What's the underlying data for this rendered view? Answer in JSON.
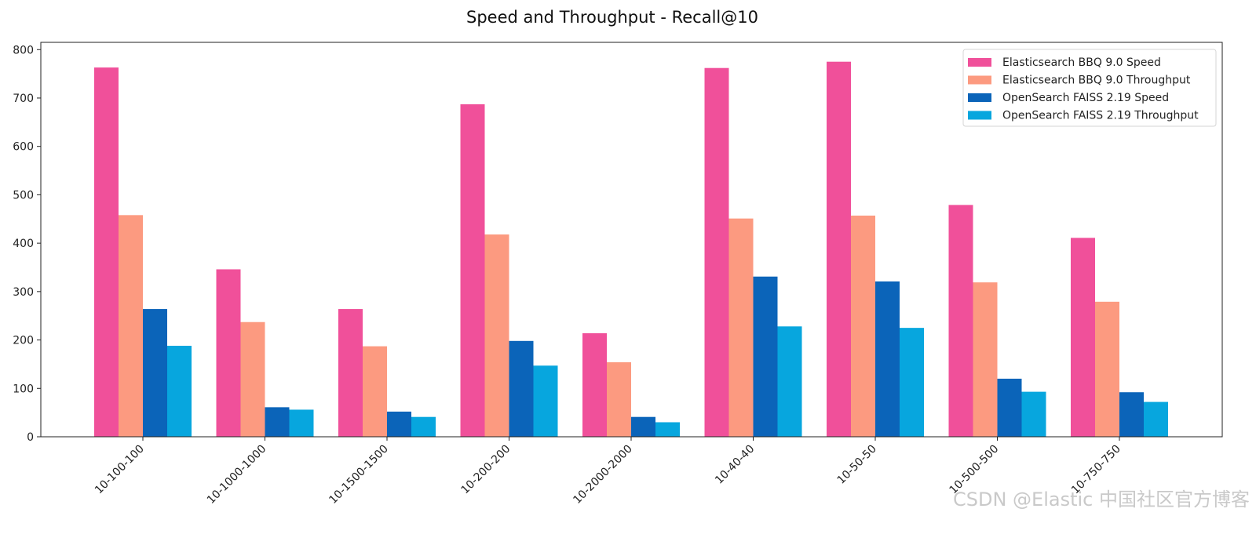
{
  "chart_data": {
    "type": "bar",
    "title": "Speed and Throughput - Recall@10",
    "xlabel": "",
    "ylabel": "",
    "ylim": [
      0,
      815
    ],
    "yticks": [
      0,
      100,
      200,
      300,
      400,
      500,
      600,
      700,
      800
    ],
    "categories": [
      "10-100-100",
      "10-1000-1000",
      "10-1500-1500",
      "10-200-200",
      "10-2000-2000",
      "10-40-40",
      "10-50-50",
      "10-500-500",
      "10-750-750"
    ],
    "series": [
      {
        "name": "Elasticsearch BBQ 9.0 Speed",
        "color": "#f0509a",
        "values": [
          763,
          346,
          264,
          687,
          214,
          762,
          775,
          479,
          411
        ]
      },
      {
        "name": "Elasticsearch BBQ 9.0 Throughput",
        "color": "#fc9a80",
        "values": [
          458,
          237,
          187,
          418,
          154,
          451,
          457,
          319,
          279
        ]
      },
      {
        "name": "OpenSearch FAISS 2.19 Speed",
        "color": "#0b64b9",
        "values": [
          264,
          61,
          52,
          198,
          41,
          331,
          321,
          120,
          92
        ]
      },
      {
        "name": "OpenSearch FAISS 2.19 Throughput",
        "color": "#07a6de",
        "values": [
          188,
          56,
          41,
          147,
          30,
          228,
          225,
          93,
          72
        ]
      }
    ],
    "legend_position": "top-right",
    "grid": false
  },
  "watermark": "CSDN @Elastic 中国社区官方博客"
}
